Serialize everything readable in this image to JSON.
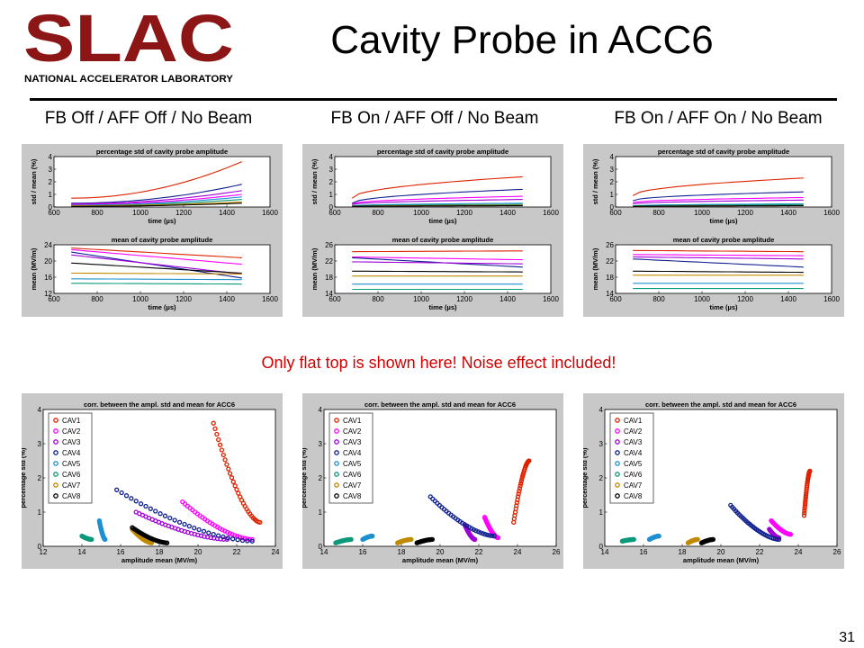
{
  "slide": {
    "logo_text": "SLAC",
    "logo_subtext": "NATIONAL ACCELERATOR LABORATORY",
    "title": "Cavity Probe in ACC6",
    "panel_titles": [
      "FB Off / AFF Off / No Beam",
      "FB On / AFF Off / No Beam",
      "FB On / AFF On / No Beam"
    ],
    "note": "Only flat top is shown here! Noise effect included!",
    "page_number": "31"
  },
  "colors": {
    "brand_red": "#8c1515",
    "note_red": "#d00000",
    "CAV1": "#dd2200",
    "CAV2": "#ff00ff",
    "CAV3": "#a000d8",
    "CAV4": "#102090",
    "CAV5": "#1e90d0",
    "CAV6": "#0a9a7a",
    "CAV7": "#c08a00",
    "CAV8": "#000000"
  },
  "chart_data": [
    {
      "panel": "FB Off / AFF Off / No Beam",
      "std": {
        "type": "line",
        "title": "percentage std of cavity probe amplitude",
        "xlabel": "time (µs)",
        "ylabel": "std / mean (%)",
        "xlim": [
          600,
          1600
        ],
        "ylim": [
          0,
          4
        ],
        "xticks": [
          "600",
          "800",
          "1000",
          "1200",
          "1400",
          "1600"
        ],
        "yticks": [
          "0",
          "1",
          "2",
          "3",
          "4"
        ],
        "x": [
          680,
          1470
        ],
        "series": [
          {
            "color": "#dd2200",
            "values": [
              0.7,
              3.6
            ],
            "curve": "up"
          },
          {
            "color": "#102090",
            "values": [
              0.3,
              1.8
            ],
            "curve": "up"
          },
          {
            "color": "#a000d8",
            "values": [
              0.25,
              1.3
            ],
            "curve": "up"
          },
          {
            "color": "#ff00ff",
            "values": [
              0.2,
              1.0
            ],
            "curve": "up"
          },
          {
            "color": "#1e90d0",
            "values": [
              0.15,
              0.8
            ],
            "curve": "up"
          },
          {
            "color": "#0a9a7a",
            "values": [
              0.1,
              0.6
            ],
            "curve": "up"
          },
          {
            "color": "#c08a00",
            "values": [
              0.1,
              0.4
            ],
            "curve": "up"
          },
          {
            "color": "#000000",
            "values": [
              0.05,
              0.3
            ],
            "curve": "up"
          }
        ]
      },
      "mean": {
        "type": "line",
        "title": "mean of cavity probe amplitude",
        "xlabel": "time (µs)",
        "ylabel": "mean (MV/m)",
        "xlim": [
          600,
          1600
        ],
        "ylim": [
          12,
          24
        ],
        "xticks": [
          "600",
          "800",
          "1000",
          "1200",
          "1400",
          "1600"
        ],
        "yticks": [
          "12",
          "16",
          "20",
          "24"
        ],
        "x": [
          680,
          1470
        ],
        "series": [
          {
            "color": "#dd2200",
            "values": [
              23.2,
              20.8
            ]
          },
          {
            "color": "#ff00ff",
            "values": [
              22.8,
              19.2
            ]
          },
          {
            "color": "#102090",
            "values": [
              22.2,
              15.8
            ]
          },
          {
            "color": "#a000d8",
            "values": [
              21.5,
              16.8
            ]
          },
          {
            "color": "#000000",
            "values": [
              19.5,
              17.0
            ]
          },
          {
            "color": "#c08a00",
            "values": [
              17.0,
              16.8
            ]
          },
          {
            "color": "#1e90d0",
            "values": [
              15.6,
              15.4
            ]
          },
          {
            "color": "#0a9a7a",
            "values": [
              14.5,
              14.3
            ]
          }
        ]
      },
      "corr": {
        "type": "scatter",
        "title": "corr. between the ampl. std and mean for ACC6",
        "xlabel": "amplitude mean (MV/m)",
        "ylabel": "percentage std (%)",
        "xlim": [
          12,
          24
        ],
        "ylim": [
          0,
          4
        ],
        "xticks": [
          "12",
          "14",
          "16",
          "18",
          "20",
          "22",
          "24"
        ],
        "yticks": [
          "0",
          "1",
          "2",
          "3",
          "4"
        ],
        "series": [
          {
            "name": "CAV1",
            "color": "#dd2200",
            "from": [
              20.8,
              3.6
            ],
            "to": [
              23.2,
              0.7
            ]
          },
          {
            "name": "CAV2",
            "color": "#ff00ff",
            "from": [
              19.2,
              1.3
            ],
            "to": [
              22.8,
              0.2
            ]
          },
          {
            "name": "CAV3",
            "color": "#a000d8",
            "from": [
              16.8,
              1.0
            ],
            "to": [
              21.5,
              0.2
            ]
          },
          {
            "name": "CAV4",
            "color": "#102090",
            "from": [
              15.8,
              1.65
            ],
            "to": [
              22.8,
              0.15
            ]
          },
          {
            "name": "CAV5",
            "color": "#1e90d0",
            "from": [
              14.9,
              0.75
            ],
            "to": [
              15.2,
              0.2
            ]
          },
          {
            "name": "CAV6",
            "color": "#0a9a7a",
            "from": [
              14.0,
              0.3
            ],
            "to": [
              14.5,
              0.2
            ]
          },
          {
            "name": "CAV7",
            "color": "#c08a00",
            "from": [
              16.6,
              0.5
            ],
            "to": [
              17.6,
              0.1
            ]
          },
          {
            "name": "CAV8",
            "color": "#000000",
            "from": [
              16.6,
              0.55
            ],
            "to": [
              18.4,
              0.1
            ]
          }
        ]
      }
    },
    {
      "panel": "FB On / AFF Off / No Beam",
      "std": {
        "type": "line",
        "title": "percentage std of cavity probe amplitude",
        "xlabel": "time (µs)",
        "ylabel": "std / mean (%)",
        "xlim": [
          600,
          1600
        ],
        "ylim": [
          0,
          4
        ],
        "xticks": [
          "600",
          "800",
          "1000",
          "1200",
          "1400",
          "1600"
        ],
        "yticks": [
          "0",
          "1",
          "2",
          "3",
          "4"
        ],
        "x": [
          680,
          1470
        ],
        "series": [
          {
            "color": "#dd2200",
            "values": [
              0.7,
              2.4
            ],
            "curve": "down"
          },
          {
            "color": "#102090",
            "values": [
              0.3,
              1.4
            ],
            "curve": "down"
          },
          {
            "color": "#ff00ff",
            "values": [
              0.25,
              0.85
            ],
            "curve": "down"
          },
          {
            "color": "#a000d8",
            "values": [
              0.2,
              0.6
            ],
            "curve": "down"
          },
          {
            "color": "#1e90d0",
            "values": [
              0.1,
              0.3
            ],
            "curve": "down"
          },
          {
            "color": "#0a9a7a",
            "values": [
              0.08,
              0.2
            ],
            "curve": "down"
          },
          {
            "color": "#c08a00",
            "values": [
              0.05,
              0.15
            ],
            "curve": "down"
          },
          {
            "color": "#000000",
            "values": [
              0.05,
              0.1
            ],
            "curve": "down"
          }
        ]
      },
      "mean": {
        "type": "line",
        "title": "mean of cavity probe amplitude",
        "xlabel": "time (µs)",
        "ylabel": "mean (MV/m)",
        "xlim": [
          600,
          1600
        ],
        "ylim": [
          14,
          26
        ],
        "xticks": [
          "600",
          "800",
          "1000",
          "1200",
          "1400",
          "1600"
        ],
        "yticks": [
          "14",
          "18",
          "22",
          "26"
        ],
        "x": [
          680,
          1470
        ],
        "series": [
          {
            "color": "#dd2200",
            "values": [
              24.3,
              24.5
            ]
          },
          {
            "color": "#ff00ff",
            "values": [
              23.0,
              22.3
            ]
          },
          {
            "color": "#102090",
            "values": [
              22.8,
              20.5
            ]
          },
          {
            "color": "#a000d8",
            "values": [
              21.8,
              21.3
            ]
          },
          {
            "color": "#000000",
            "values": [
              19.5,
              19.3
            ]
          },
          {
            "color": "#c08a00",
            "values": [
              18.3,
              18.3
            ]
          },
          {
            "color": "#1e90d0",
            "values": [
              16.3,
              16.3
            ]
          },
          {
            "color": "#0a9a7a",
            "values": [
              15.0,
              15.0
            ]
          }
        ]
      },
      "corr": {
        "type": "scatter",
        "title": "corr. between the ampl. std and mean for ACC6",
        "xlabel": "amplitude mean (MV/m)",
        "ylabel": "percentage std (%)",
        "xlim": [
          14,
          26
        ],
        "ylim": [
          0,
          4
        ],
        "xticks": [
          "14",
          "16",
          "18",
          "20",
          "22",
          "24",
          "26"
        ],
        "yticks": [
          "0",
          "1",
          "2",
          "3",
          "4"
        ],
        "series": [
          {
            "name": "CAV1",
            "color": "#dd2200",
            "from": [
              23.8,
              0.7
            ],
            "to": [
              24.6,
              2.5
            ]
          },
          {
            "name": "CAV2",
            "color": "#ff00ff",
            "from": [
              22.3,
              0.85
            ],
            "to": [
              23.0,
              0.25
            ]
          },
          {
            "name": "CAV3",
            "color": "#a000d8",
            "from": [
              21.3,
              0.6
            ],
            "to": [
              21.8,
              0.2
            ]
          },
          {
            "name": "CAV4",
            "color": "#102090",
            "from": [
              19.5,
              1.45
            ],
            "to": [
              22.8,
              0.3
            ]
          },
          {
            "name": "CAV5",
            "color": "#1e90d0",
            "from": [
              16.0,
              0.2
            ],
            "to": [
              16.5,
              0.3
            ]
          },
          {
            "name": "CAV6",
            "color": "#0a9a7a",
            "from": [
              14.6,
              0.1
            ],
            "to": [
              15.4,
              0.2
            ]
          },
          {
            "name": "CAV7",
            "color": "#c08a00",
            "from": [
              17.8,
              0.1
            ],
            "to": [
              18.5,
              0.2
            ]
          },
          {
            "name": "CAV8",
            "color": "#000000",
            "from": [
              18.8,
              0.1
            ],
            "to": [
              19.6,
              0.2
            ]
          }
        ]
      }
    },
    {
      "panel": "FB On / AFF On / No Beam",
      "std": {
        "type": "line",
        "title": "percentage std of cavity probe amplitude",
        "xlabel": "time (µs)",
        "ylabel": "std / mean (%)",
        "xlim": [
          600,
          1600
        ],
        "ylim": [
          0,
          4
        ],
        "xticks": [
          "600",
          "800",
          "1000",
          "1200",
          "1400",
          "1600"
        ],
        "yticks": [
          "0",
          "1",
          "2",
          "3",
          "4"
        ],
        "x": [
          680,
          1470
        ],
        "series": [
          {
            "color": "#dd2200",
            "values": [
              0.9,
              2.3
            ],
            "curve": "down"
          },
          {
            "color": "#102090",
            "values": [
              0.5,
              1.2
            ],
            "curve": "down"
          },
          {
            "color": "#ff00ff",
            "values": [
              0.35,
              0.75
            ],
            "curve": "down"
          },
          {
            "color": "#a000d8",
            "values": [
              0.25,
              0.55
            ],
            "curve": "down"
          },
          {
            "color": "#1e90d0",
            "values": [
              0.1,
              0.25
            ],
            "curve": "down"
          },
          {
            "color": "#0a9a7a",
            "values": [
              0.08,
              0.18
            ],
            "curve": "down"
          },
          {
            "color": "#c08a00",
            "values": [
              0.05,
              0.12
            ],
            "curve": "down"
          },
          {
            "color": "#000000",
            "values": [
              0.05,
              0.1
            ],
            "curve": "down"
          }
        ]
      },
      "mean": {
        "type": "line",
        "title": "mean of cavity probe amplitude",
        "xlabel": "time (µs)",
        "ylabel": "mean (MV/m)",
        "xlim": [
          600,
          1600
        ],
        "ylim": [
          14,
          26
        ],
        "xticks": [
          "600",
          "800",
          "1000",
          "1200",
          "1400",
          "1600"
        ],
        "yticks": [
          "14",
          "18",
          "22",
          "26"
        ],
        "x": [
          680,
          1470
        ],
        "series": [
          {
            "color": "#dd2200",
            "values": [
              24.6,
              24.3
            ]
          },
          {
            "color": "#ff00ff",
            "values": [
              23.6,
              23.3
            ]
          },
          {
            "color": "#a000d8",
            "values": [
              23.0,
              22.5
            ]
          },
          {
            "color": "#102090",
            "values": [
              22.5,
              20.5
            ]
          },
          {
            "color": "#000000",
            "values": [
              19.5,
              19.2
            ]
          },
          {
            "color": "#c08a00",
            "values": [
              18.5,
              18.5
            ]
          },
          {
            "color": "#1e90d0",
            "values": [
              16.5,
              16.5
            ]
          },
          {
            "color": "#0a9a7a",
            "values": [
              15.2,
              15.2
            ]
          }
        ]
      },
      "corr": {
        "type": "scatter",
        "title": "corr. between the ampl. std and mean for ACC6",
        "xlabel": "amplitude mean (MV/m)",
        "ylabel": "percentage std (%)",
        "xlim": [
          14,
          26
        ],
        "ylim": [
          0,
          4
        ],
        "xticks": [
          "14",
          "16",
          "18",
          "20",
          "22",
          "24",
          "26"
        ],
        "yticks": [
          "0",
          "1",
          "2",
          "3",
          "4"
        ],
        "series": [
          {
            "name": "CAV1",
            "color": "#dd2200",
            "from": [
              24.3,
              0.9
            ],
            "to": [
              24.6,
              2.2
            ]
          },
          {
            "name": "CAV2",
            "color": "#ff00ff",
            "from": [
              22.6,
              0.75
            ],
            "to": [
              23.6,
              0.35
            ]
          },
          {
            "name": "CAV3",
            "color": "#a000d8",
            "from": [
              22.5,
              0.5
            ],
            "to": [
              23.0,
              0.25
            ]
          },
          {
            "name": "CAV4",
            "color": "#102090",
            "from": [
              20.5,
              1.2
            ],
            "to": [
              23.0,
              0.2
            ]
          },
          {
            "name": "CAV5",
            "color": "#1e90d0",
            "from": [
              16.3,
              0.2
            ],
            "to": [
              16.8,
              0.3
            ]
          },
          {
            "name": "CAV6",
            "color": "#0a9a7a",
            "from": [
              14.9,
              0.15
            ],
            "to": [
              15.5,
              0.2
            ]
          },
          {
            "name": "CAV7",
            "color": "#c08a00",
            "from": [
              18.3,
              0.1
            ],
            "to": [
              18.8,
              0.2
            ]
          },
          {
            "name": "CAV8",
            "color": "#000000",
            "from": [
              19.0,
              0.1
            ],
            "to": [
              19.6,
              0.2
            ]
          }
        ]
      }
    }
  ]
}
